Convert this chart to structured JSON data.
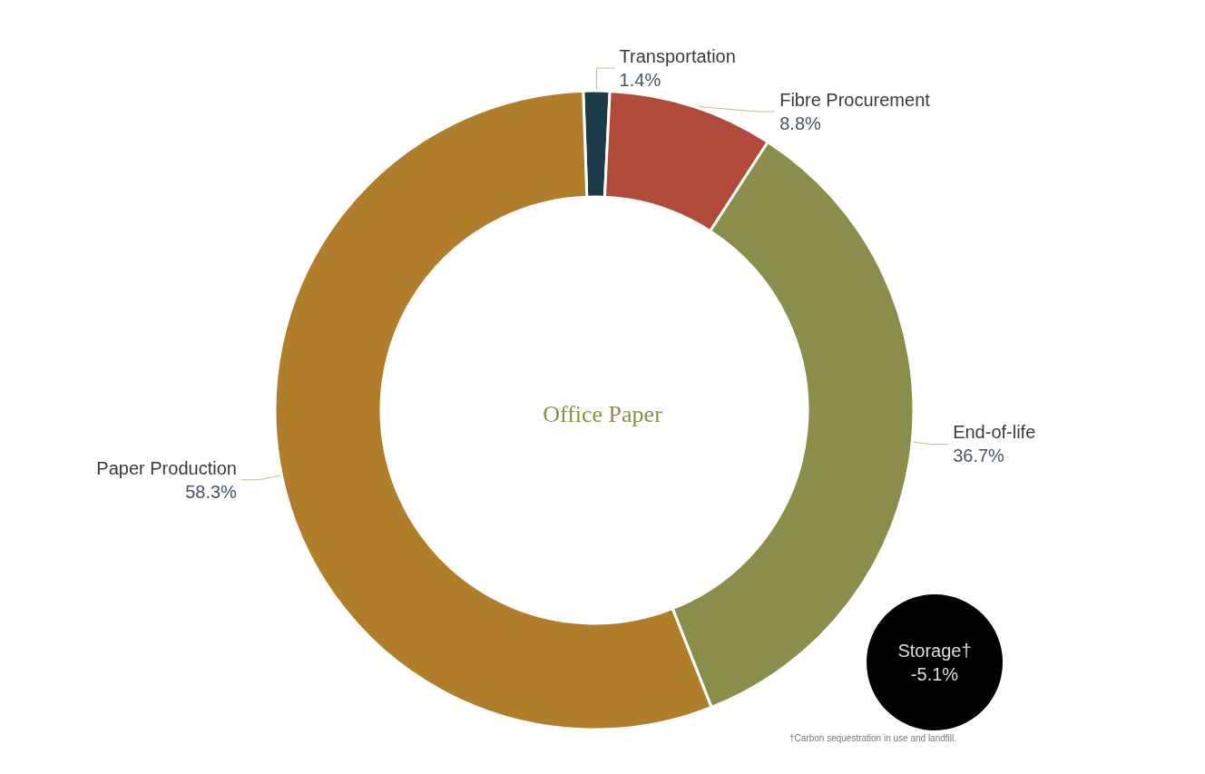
{
  "chart_data": {
    "type": "donut",
    "title": "Office Paper",
    "categories": [
      "Transportation",
      "Fibre Procurement",
      "End-of-life",
      "Paper Production"
    ],
    "values": [
      1.4,
      8.8,
      36.7,
      58.3
    ],
    "colors": [
      "#1d3a48",
      "#b04a3a",
      "#8b8d4b",
      "#b07d2a"
    ],
    "legend": false,
    "value_labels": [
      "1.4%",
      "8.8%",
      "36.7%",
      "58.3%"
    ],
    "annotations": [
      "Storage† -5.1%",
      "†Carbon sequestration in use and landfill."
    ]
  }
}
